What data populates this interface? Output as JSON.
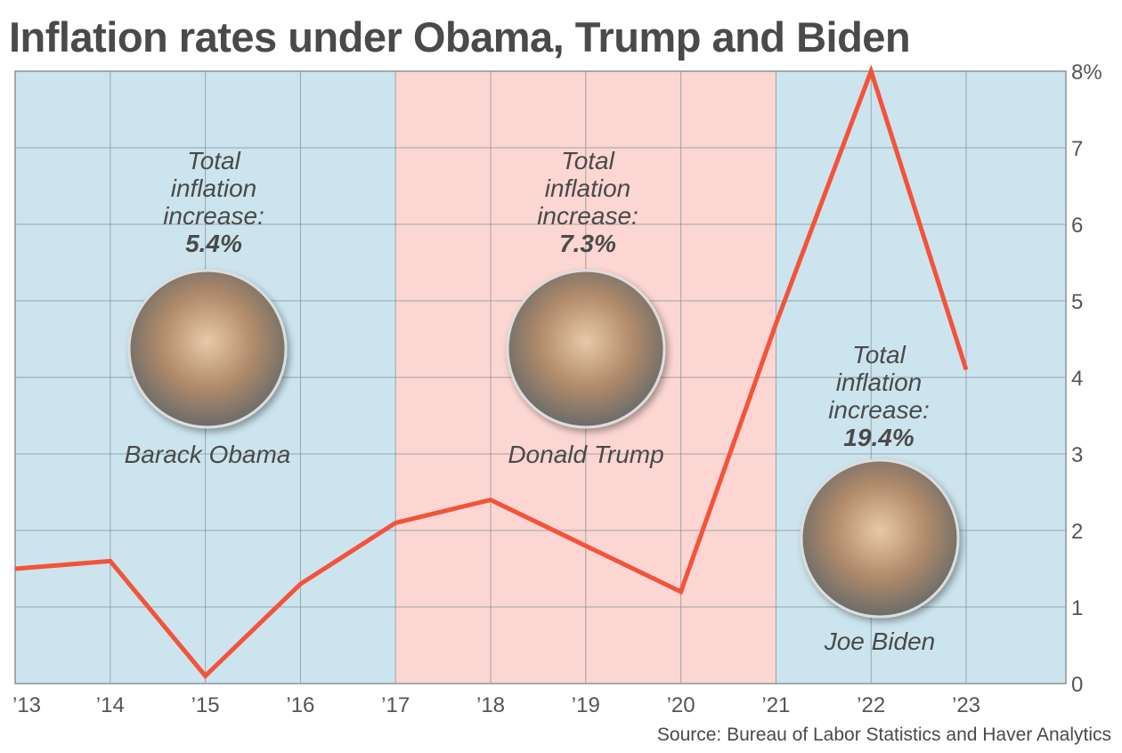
{
  "chart_data": {
    "type": "line",
    "title": "Inflation rates under Obama, Trump and Biden",
    "x": [
      "’13",
      "’14",
      "’15",
      "’16",
      "’17",
      "’18",
      "’19",
      "’20",
      "’21",
      "’22",
      "’23"
    ],
    "y": [
      1.5,
      1.6,
      0.1,
      1.3,
      2.1,
      2.4,
      1.8,
      1.2,
      4.7,
      8.0,
      4.1
    ],
    "y_ticks": [
      "0",
      "1",
      "2",
      "3",
      "4",
      "5",
      "6",
      "7",
      "8%"
    ],
    "ylim": [
      0,
      8
    ],
    "y_axis_side": "right",
    "grid": true,
    "line_color": "#f4533a",
    "shaded_periods": [
      {
        "name": "Barack Obama",
        "from": "’13",
        "to": "’17",
        "color": "#cce4ee",
        "annotation": [
          "Total",
          "inflation",
          "increase:"
        ],
        "total": "5.4%"
      },
      {
        "name": "Donald Trump",
        "from": "’17",
        "to": "’21",
        "color": "#fcd6d2",
        "annotation": [
          "Total",
          "inflation",
          "increase:"
        ],
        "total": "7.3%"
      },
      {
        "name": "Joe Biden",
        "from": "’21",
        "to": "end",
        "color": "#cce4ee",
        "annotation": [
          "Total",
          "inflation",
          "increase:"
        ],
        "total": "19.4%"
      }
    ],
    "source": "Source: Bureau of Labor Statistics and Haver Analytics"
  }
}
